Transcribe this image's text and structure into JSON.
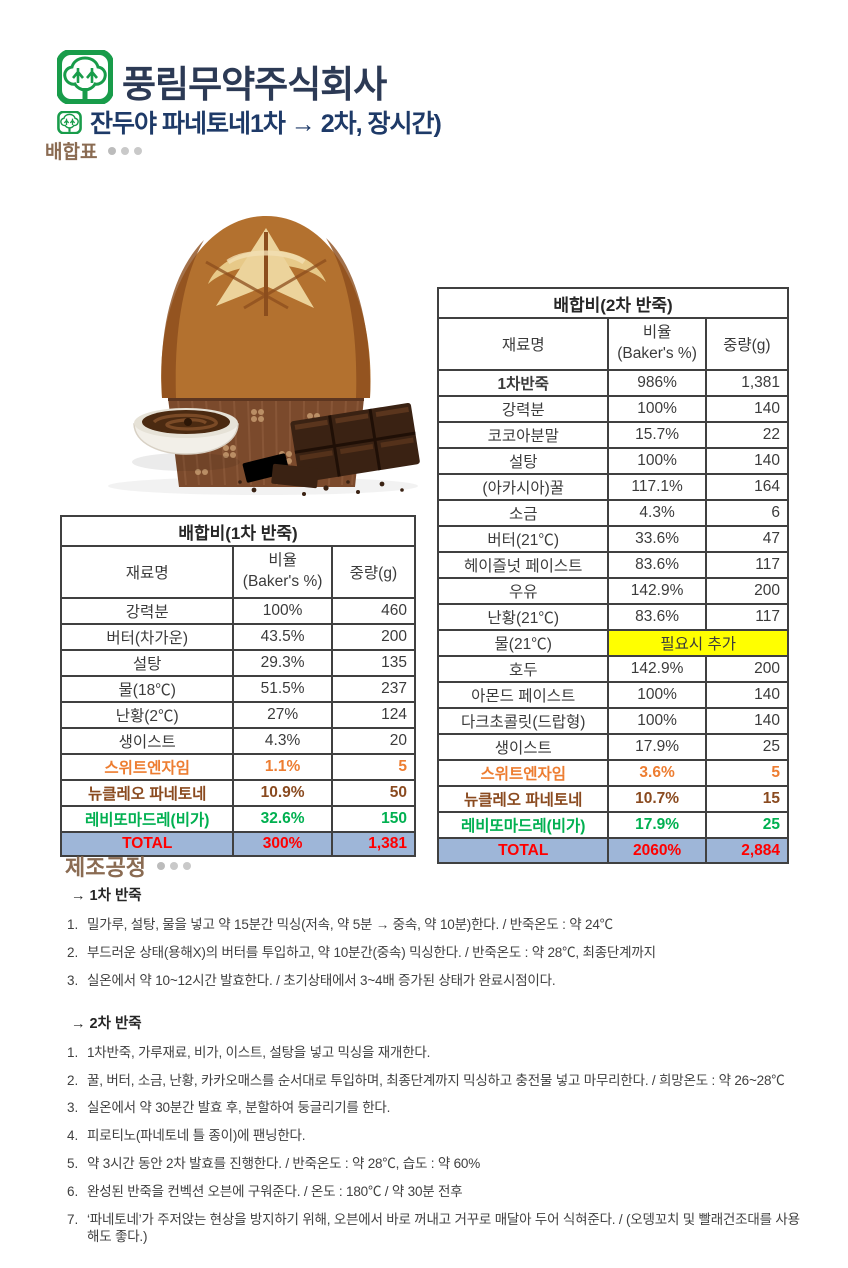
{
  "header": {
    "company": "풍림무약주식회사",
    "title": "잔두야 파네토네1차 → 2차, 장시간)",
    "section_label": "배합표"
  },
  "icons": {
    "company_logo": "green-tree-logo",
    "title_logo": "green-tree-logo-small",
    "photo": "panettone-with-chocolate-photo"
  },
  "colors": {
    "company_text": "#2c3a55",
    "title_text": "#1e3a68",
    "heading_brown": "#8a6b52",
    "logo_green": "#189c4a",
    "highlight_yellow": "#ffff00",
    "total_row_bg": "#9eb6d8",
    "total_row_text": "#ff0000",
    "row_orange": "#ed7d31",
    "row_brown": "#8a4a1f",
    "row_green": "#00b050"
  },
  "table1": {
    "title": "배합비(1차 반죽)",
    "columns": {
      "name": "재료명",
      "ratio_line1": "비율",
      "ratio_line2": "(Baker's %)",
      "weight": "중량(g)"
    },
    "rows": [
      {
        "name": "강력분",
        "ratio": "100%",
        "weight": "460"
      },
      {
        "name": "버터(차가운)",
        "ratio": "43.5%",
        "weight": "200"
      },
      {
        "name": "설탕",
        "ratio": "29.3%",
        "weight": "135"
      },
      {
        "name": "물(18℃)",
        "ratio": "51.5%",
        "weight": "237"
      },
      {
        "name": "난황(2℃)",
        "ratio": "27%",
        "weight": "124"
      },
      {
        "name": "생이스트",
        "ratio": "4.3%",
        "weight": "20"
      },
      {
        "name": "스위트엔자임",
        "ratio": "1.1%",
        "weight": "5",
        "style": "orange"
      },
      {
        "name": "뉴클레오 파네토네",
        "ratio": "10.9%",
        "weight": "50",
        "style": "brown"
      },
      {
        "name": "레비또마드레(비가)",
        "ratio": "32.6%",
        "weight": "150",
        "style": "green"
      },
      {
        "name": "TOTAL",
        "ratio": "300%",
        "weight": "1,381",
        "style": "total"
      }
    ]
  },
  "table2": {
    "title": "배합비(2차 반죽)",
    "columns": {
      "name": "재료명",
      "ratio_line1": "비율",
      "ratio_line2": "(Baker's %)",
      "weight": "중량(g)"
    },
    "rows": [
      {
        "name": "1차반죽",
        "ratio": "986%",
        "weight": "1,381",
        "style": "bold"
      },
      {
        "name": "강력분",
        "ratio": "100%",
        "weight": "140"
      },
      {
        "name": "코코아분말",
        "ratio": "15.7%",
        "weight": "22"
      },
      {
        "name": "설탕",
        "ratio": "100%",
        "weight": "140"
      },
      {
        "name": "(아카시아)꿀",
        "ratio": "117.1%",
        "weight": "164"
      },
      {
        "name": "소금",
        "ratio": "4.3%",
        "weight": "6"
      },
      {
        "name": "버터(21℃)",
        "ratio": "33.6%",
        "weight": "47"
      },
      {
        "name": "헤이즐넛 페이스트",
        "ratio": "83.6%",
        "weight": "117"
      },
      {
        "name": "우유",
        "ratio": "142.9%",
        "weight": "200"
      },
      {
        "name": "난황(21℃)",
        "ratio": "83.6%",
        "weight": "117"
      },
      {
        "name": "물(21℃)",
        "note": "필요시 추가"
      },
      {
        "name": "호두",
        "ratio": "142.9%",
        "weight": "200"
      },
      {
        "name": "아몬드 페이스트",
        "ratio": "100%",
        "weight": "140"
      },
      {
        "name": "다크초콜릿(드랍형)",
        "ratio": "100%",
        "weight": "140"
      },
      {
        "name": "생이스트",
        "ratio": "17.9%",
        "weight": "25"
      },
      {
        "name": "스위트엔자임",
        "ratio": "3.6%",
        "weight": "5",
        "style": "orange"
      },
      {
        "name": "뉴클레오 파네토네",
        "ratio": "10.7%",
        "weight": "15",
        "style": "brown"
      },
      {
        "name": "레비또마드레(비가)",
        "ratio": "17.9%",
        "weight": "25",
        "style": "green"
      },
      {
        "name": "TOTAL",
        "ratio": "2060%",
        "weight": "2,884",
        "style": "total"
      }
    ]
  },
  "process": {
    "heading": "제조공정",
    "sections": [
      {
        "title": "→ 1차 반죽",
        "steps": [
          "밀가루, 설탕, 물을 넣고 약 15분간 믹싱(저속, 약 5분 → 중속, 약 10분)한다. / 반죽온도 : 약 24℃",
          "부드러운 상태(용해X)의 버터를 투입하고, 약 10분간(중속) 믹싱한다. / 반죽온도 : 약 28℃, 최종단계까지",
          "실온에서 약 10~12시간 발효한다. / 초기상태에서 3~4배 증가된 상태가 완료시점이다."
        ]
      },
      {
        "title": "→ 2차 반죽",
        "steps": [
          "1차반죽, 가루재료, 비가, 이스트, 설탕을 넣고 믹싱을 재개한다.",
          "꿀, 버터, 소금, 난황, 카카오매스를 순서대로 투입하며, 최종단계까지 믹싱하고 충전물 넣고 마무리한다. / 희망온도 : 약 26~28℃",
          "실온에서 약 30분간 발효 후, 분할하여 둥글리기를 한다.",
          "피로티노(파네토네 틀 종이)에 팬닝한다.",
          "약 3시간 동안 2차 발효를 진행한다. / 반죽온도 : 약 28℃, 습도 : 약 60%",
          "완성된 반죽을 컨벡션 오븐에 구워준다. / 온도 : 180℃ / 약 30분 전후",
          "‘파네토네’가 주저앉는 현상을 방지하기 위해, 오븐에서 바로 꺼내고 거꾸로 매달아 두어 식혀준다. / (오뎅꼬치 및 빨래건조대를 사용해도 좋다.)"
        ]
      }
    ]
  }
}
